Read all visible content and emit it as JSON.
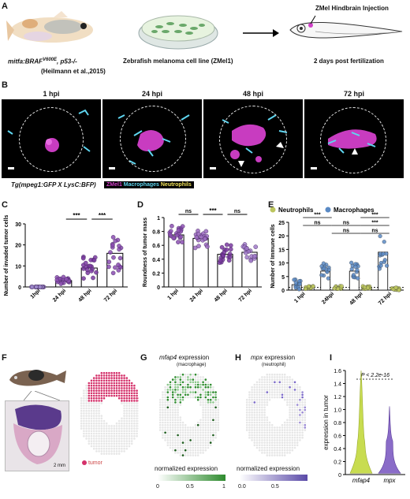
{
  "panels": {
    "a": "A",
    "b": "B",
    "c": "C",
    "d": "D",
    "e": "E",
    "f": "F",
    "g": "G",
    "h": "H",
    "i": "I"
  },
  "panel_a": {
    "fish_genotype_part1": "mitfa:BRAF",
    "fish_genotype_sup": "V600E",
    "fish_genotype_part2": ", p53-/-",
    "fish_citation": "(Heilmann et al.,2015)",
    "cell_line": "Zebrafish melanoma cell line (ZMel1)",
    "injection": "ZMel Hindbrain Injection",
    "timepoint": "2 days post fertilization"
  },
  "panel_b": {
    "timepoints": [
      "1 hpi",
      "24 hpi",
      "48 hpi",
      "72 hpi"
    ],
    "transgenic": "Tg(mpeg1:GFP X LysC:BFP)",
    "legend": [
      "ZMel1",
      "Macrophages",
      "Neutrophils"
    ],
    "legend_colors": [
      "#d040c8",
      "#5fd6f0",
      "#f2e35a"
    ]
  },
  "chart_data": [
    {
      "type": "bar",
      "panel": "C",
      "categories": [
        "1hpi",
        "24 hpi",
        "48 hpi",
        "72 hpi"
      ],
      "values": [
        0,
        3,
        9,
        16
      ],
      "ylabel": "Number of invaded tumor cells",
      "ylim": [
        0,
        30
      ],
      "yticks": [
        0,
        10,
        20,
        30
      ],
      "significance": [
        {
          "between": [
            "24 hpi",
            "48 hpi"
          ],
          "label": "***"
        },
        {
          "between": [
            "48 hpi",
            "72 hpi"
          ],
          "label": "***"
        }
      ],
      "point_colors": [
        "#9b86c8",
        "#8b4fb0",
        "#7a3aa0",
        "#8a4cb0"
      ]
    },
    {
      "type": "bar",
      "panel": "D",
      "categories": [
        "1 hpi",
        "24 hpi",
        "48 hpi",
        "72 hpi"
      ],
      "values": [
        0.75,
        0.7,
        0.47,
        0.5
      ],
      "ylabel": "Roundness of tumor mass",
      "ylim": [
        0,
        1.0
      ],
      "yticks": [
        0.0,
        0.2,
        0.4,
        0.6,
        0.8,
        1.0
      ],
      "significance": [
        {
          "between": [
            "1 hpi",
            "24 hpi"
          ],
          "label": "ns"
        },
        {
          "between": [
            "24 hpi",
            "48 hpi"
          ],
          "label": "***"
        },
        {
          "between": [
            "48 hpi",
            "72 hpi"
          ],
          "label": "ns"
        }
      ],
      "point_colors": [
        "#8b4fb0",
        "#9b6bc0",
        "#7a3aa0",
        "#a07ac8"
      ]
    },
    {
      "type": "bar",
      "panel": "E",
      "categories": [
        "1 hpi",
        "24hpi",
        "48 hpi",
        "72 hpi"
      ],
      "series": [
        {
          "name": "Neutrophils",
          "values": [
            1,
            1,
            1,
            0.5
          ],
          "color": "#bcc55e"
        },
        {
          "name": "Macrophages",
          "values": [
            2,
            7,
            7,
            14
          ],
          "color": "#5a8ac4"
        }
      ],
      "ylabel": "Number of Immune cells",
      "ylim": [
        0,
        25
      ],
      "yticks": [
        0,
        5,
        10,
        15,
        20,
        25
      ],
      "significance": [
        "***",
        "***",
        "ns",
        "ns",
        "ns",
        "ns",
        "***"
      ]
    },
    {
      "type": "bar",
      "panel": "I",
      "categories": [
        "mfap4",
        "mpx"
      ],
      "ylabel": "expression in tumor",
      "ylim": [
        0,
        1.6
      ],
      "yticks": [
        0,
        0.2,
        0.4,
        0.6,
        0.8,
        1.0,
        1.2,
        1.4,
        1.6
      ],
      "annotation": "P < 2.2e-16",
      "colors": [
        "#c8dc50",
        "#8a6cc8"
      ]
    }
  ],
  "panel_f": {
    "scale": "2 mm",
    "legend": "tumor",
    "legend_color": "#d4306a"
  },
  "panel_g": {
    "title_gene": "mfap4",
    "title_rest": " expression",
    "subtitle": "(macrophage)",
    "legend_title": "normalized expression",
    "ticks": [
      "0",
      "0.5",
      "1"
    ],
    "color": "#2e8b2e"
  },
  "panel_h": {
    "title_gene": "mpx",
    "title_rest": " expression",
    "subtitle": "(neutrophil)",
    "legend_title": "normalized expression",
    "ticks": [
      "0.0",
      "0.5"
    ],
    "color": "#5a4aa8"
  }
}
